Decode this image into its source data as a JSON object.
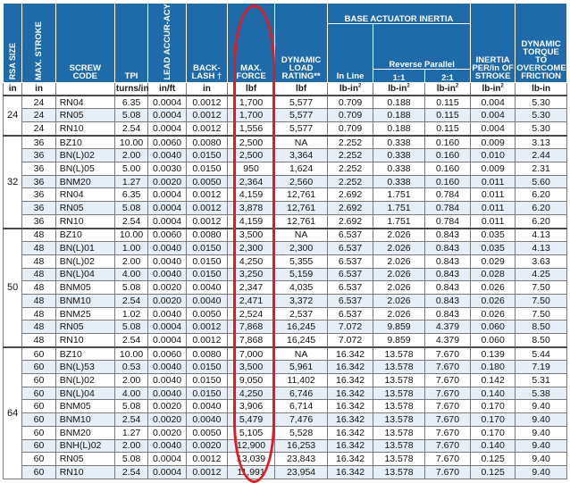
{
  "headers": {
    "rsa_size": "RSA SIZE",
    "max_stroke": "MAX. STROKE",
    "screw_code": "SCREW CODE",
    "tpi": "TPI",
    "lead_accuracy": "LEAD ACCUR-ACY",
    "backlash": "BACK-LASH",
    "backlash_mark": "†",
    "max_force": "MAX. FORCE",
    "dynamic_load": "DYNAMIC LOAD RATING**",
    "base_actuator_inertia": "BASE ACTUATOR INERTIA",
    "reverse_parallel": "Reverse Parallel",
    "in_line": "In Line",
    "ratio_1_1": "1:1",
    "ratio_2_1": "2:1",
    "inertia_per_stroke": "INERTIA PER/in OF STROKE",
    "dynamic_torque": "DYNAMIC TORQUE TO OVERCOME FRICTION"
  },
  "units": [
    "in",
    "in",
    "",
    "turns/in",
    "in/ft",
    "in",
    "lbf",
    "lbf",
    "lb-in2",
    "lb-in2",
    "lb-in2",
    "lb-in2",
    "lb-in"
  ],
  "groups": [
    {
      "size": "24",
      "rows": [
        [
          "24",
          "RN04",
          "6.35",
          "0.0004",
          "0.0012",
          "1,700",
          "5,577",
          "0.709",
          "0.188",
          "0.115",
          "0.004",
          "5.30"
        ],
        [
          "24",
          "RN05",
          "5.08",
          "0.0004",
          "0.0012",
          "1,700",
          "5,577",
          "0.709",
          "0.188",
          "0.115",
          "0.004",
          "5.30"
        ],
        [
          "24",
          "RN10",
          "2.54",
          "0.0004",
          "0.0012",
          "1,556",
          "5,577",
          "0.709",
          "0.188",
          "0.115",
          "0.004",
          "5.30"
        ]
      ]
    },
    {
      "size": "32",
      "rows": [
        [
          "36",
          "BZ10",
          "10.00",
          "0.0060",
          "0.0080",
          "2,500",
          "NA",
          "2.252",
          "0.338",
          "0.160",
          "0.009",
          "3.13"
        ],
        [
          "36",
          "BN(L)02",
          "2.00",
          "0.0040",
          "0.0150",
          "2,500",
          "3,364",
          "2.252",
          "0.338",
          "0.160",
          "0.010",
          "2.44"
        ],
        [
          "36",
          "BN(L)05",
          "5.00",
          "0.0030",
          "0.0150",
          "950",
          "1,624",
          "2.252",
          "0.338",
          "0.160",
          "0.009",
          "2.31"
        ],
        [
          "36",
          "BNM20",
          "1.27",
          "0.0020",
          "0.0050",
          "2,364",
          "2,560",
          "2.252",
          "0.338",
          "0.160",
          "0.011",
          "5.60"
        ],
        [
          "36",
          "RN04",
          "6.35",
          "0.0004",
          "0.0012",
          "4,159",
          "12,761",
          "2.692",
          "1.751",
          "0.784",
          "0.011",
          "6.20"
        ],
        [
          "36",
          "RN05",
          "5.08",
          "0.0004",
          "0.0012",
          "3,878",
          "12,761",
          "2.692",
          "1.751",
          "0.784",
          "0.011",
          "6.20"
        ],
        [
          "36",
          "RN10",
          "2.54",
          "0.0004",
          "0.0012",
          "4,159",
          "12,761",
          "2.692",
          "1.751",
          "0.784",
          "0.011",
          "6.20"
        ]
      ]
    },
    {
      "size": "50",
      "rows": [
        [
          "48",
          "BZ10",
          "10.00",
          "0.0060",
          "0.0080",
          "3,500",
          "NA",
          "6.537",
          "2.026",
          "0.843",
          "0.035",
          "4.13"
        ],
        [
          "48",
          "BN(L)01",
          "1.00",
          "0.0040",
          "0.0150",
          "2,300",
          "2,300",
          "6.537",
          "2.026",
          "0.843",
          "0.035",
          "4.13"
        ],
        [
          "48",
          "BN(L)02",
          "2.00",
          "0.0040",
          "0.0150",
          "4,250",
          "5,355",
          "6.537",
          "2.026",
          "0.843",
          "0.029",
          "3.63"
        ],
        [
          "48",
          "BN(L)04",
          "4.00",
          "0.0040",
          "0.0150",
          "3,250",
          "5,159",
          "6.537",
          "2.026",
          "0.843",
          "0.028",
          "4.25"
        ],
        [
          "48",
          "BNM05",
          "5.08",
          "0.0020",
          "0.0040",
          "2,347",
          "4,035",
          "6.537",
          "2.026",
          "0.843",
          "0.026",
          "7.50"
        ],
        [
          "48",
          "BNM10",
          "2.54",
          "0.0020",
          "0.0040",
          "2,471",
          "3,372",
          "6.537",
          "2.026",
          "0.843",
          "0.026",
          "7.50"
        ],
        [
          "48",
          "BNM25",
          "1.02",
          "0.0040",
          "0.0050",
          "2,524",
          "2,537",
          "6.537",
          "2.026",
          "0.843",
          "0.026",
          "7.50"
        ],
        [
          "48",
          "RN05",
          "5.08",
          "0.0004",
          "0.0012",
          "7,868",
          "16,245",
          "7.072",
          "9.859",
          "4.379",
          "0.060",
          "8.50"
        ],
        [
          "48",
          "RN10",
          "2.54",
          "0.0004",
          "0.0012",
          "7,868",
          "16,245",
          "7.072",
          "9.859",
          "4.379",
          "0.060",
          "8.50"
        ]
      ]
    },
    {
      "size": "64",
      "rows": [
        [
          "60",
          "BZ10",
          "10.00",
          "0.0060",
          "0.0080",
          "7,000",
          "NA",
          "16.342",
          "13.578",
          "7.670",
          "0.139",
          "5.44"
        ],
        [
          "60",
          "BN(L)53",
          "0.53",
          "0.0040",
          "0.0150",
          "3,500",
          "5,961",
          "16.342",
          "13.578",
          "7.670",
          "0.180",
          "7.19"
        ],
        [
          "60",
          "BN(L)02",
          "2.00",
          "0.0040",
          "0.0150",
          "9,050",
          "11,402",
          "16.342",
          "13.578",
          "7.670",
          "0.142",
          "5.31"
        ],
        [
          "60",
          "BN(L)04",
          "4.00",
          "0.0040",
          "0.0150",
          "4,250",
          "6,746",
          "16.342",
          "13.578",
          "7.670",
          "0.140",
          "5.38"
        ],
        [
          "60",
          "BNM05",
          "5.08",
          "0.0020",
          "0.0040",
          "3,906",
          "6,714",
          "16.342",
          "13.578",
          "7.670",
          "0.170",
          "9.40"
        ],
        [
          "60",
          "BNM10",
          "2.54",
          "0.0020",
          "0.0040",
          "5,479",
          "7,476",
          "16.342",
          "13.578",
          "7.670",
          "0.170",
          "9.40"
        ],
        [
          "60",
          "BNM20",
          "1.27",
          "0.0020",
          "0.0050",
          "5,105",
          "5,528",
          "16.342",
          "13.578",
          "7.670",
          "0.170",
          "9.40"
        ],
        [
          "60",
          "BNH(L)02",
          "2.00",
          "0.0040",
          "0.0020",
          "12,900",
          "16,253",
          "16.342",
          "13.578",
          "7.670",
          "0.140",
          "9.40"
        ],
        [
          "60",
          "RN05",
          "5.08",
          "0.0004",
          "0.0012",
          "13,039",
          "23,843",
          "16.342",
          "13.578",
          "7.670",
          "0.125",
          "9.40"
        ],
        [
          "60",
          "RN10",
          "2.54",
          "0.0004",
          "0.0012",
          "11,991",
          "23,954",
          "16.342",
          "13.578",
          "7.670",
          "0.125",
          "9.40"
        ]
      ]
    }
  ],
  "colors": {
    "header_bg": "#1f6aa8",
    "zebra_bg": "#e6eef7",
    "highlight": "#e01b22"
  }
}
